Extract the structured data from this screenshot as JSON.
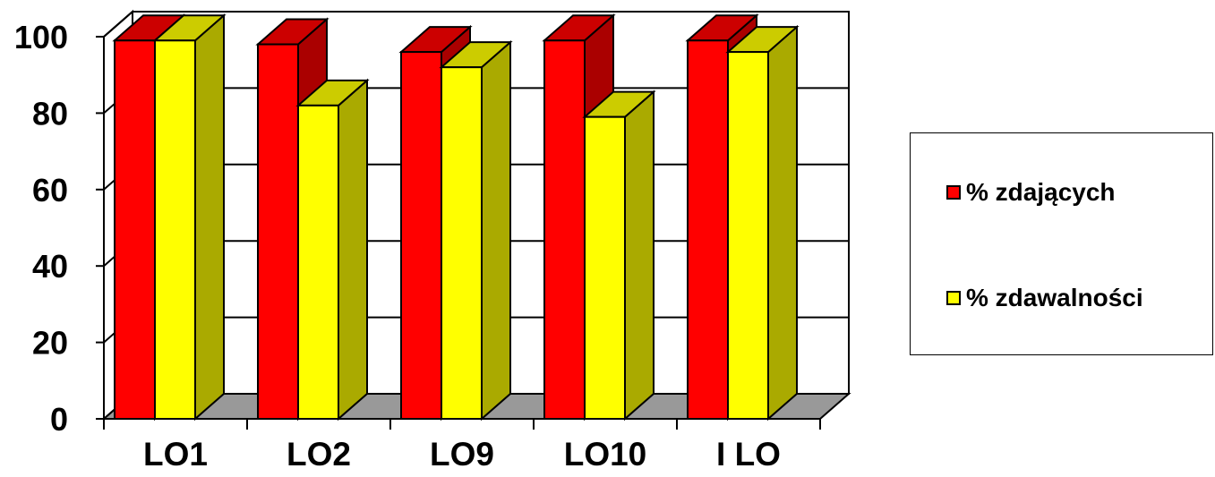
{
  "chart_data": {
    "type": "bar",
    "categories": [
      "LO1",
      "LO2",
      "LO9",
      "LO10",
      "I LO"
    ],
    "series": [
      {
        "name": "% zdających",
        "values": [
          99,
          98,
          96,
          99,
          99
        ],
        "color": "#ff0000",
        "side_color": "#aa0000"
      },
      {
        "name": "% zdawalności",
        "values": [
          99,
          82,
          92,
          79,
          96
        ],
        "color": "#ffff00",
        "side_color": "#aaaa00"
      }
    ],
    "title": "",
    "xlabel": "",
    "ylabel": "",
    "ylim": [
      0,
      100
    ],
    "yticks": [
      0,
      20,
      40,
      60,
      80,
      100
    ],
    "grid": true,
    "legend_position": "right",
    "floor_color": "#999999",
    "three_d": true
  }
}
